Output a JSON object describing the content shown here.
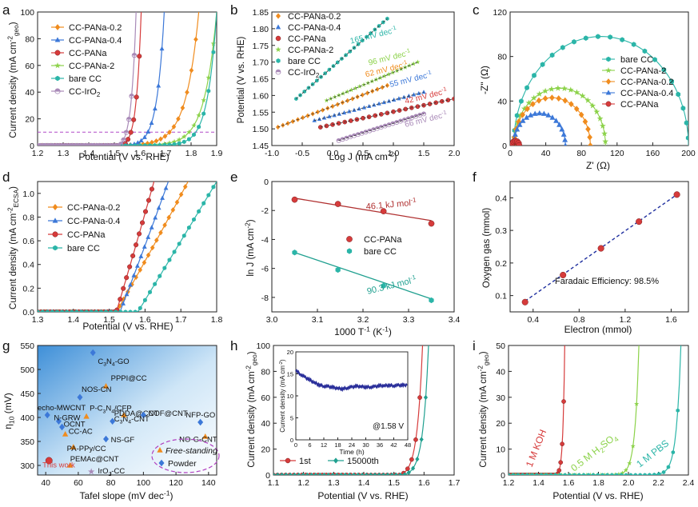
{
  "figure": {
    "description_free": true
  },
  "colors": {
    "pana02": "#F08C1E",
    "pana04": "#3C78D8",
    "pana": "#D63B3B",
    "pana2": "#8CD24A",
    "bare": "#2BB5A8",
    "iro2": "#A98AB8",
    "grid_dashed": "#B04AC8",
    "fit_red": "#B03030",
    "fit_teal": "#20A090",
    "fit_blue": "#1F2F9F",
    "eis_bare": "#2BB5A8"
  },
  "chart_data": [
    {
      "id": "a",
      "panel_label": "a",
      "type": "line",
      "xlabel": "Potential (V vs. RHE)",
      "ylabel_main": "Current density (mA cm",
      "ylabel_sup": "-2",
      "ylabel_sub": "geo",
      "ylabel_close": ")",
      "xlim": [
        1.2,
        1.9
      ],
      "ylim": [
        0,
        100
      ],
      "xticks": [
        "1.2",
        "1.3",
        "1.4",
        "1.5",
        "1.6",
        "1.7",
        "1.8",
        "1.9"
      ],
      "yticks": [
        "0",
        "20",
        "40",
        "60",
        "80",
        "100"
      ],
      "reference_line_y": 10,
      "series": [
        {
          "name": "CC-PANa-0.2",
          "color_key": "pana02",
          "marker": "diamond",
          "onset": 1.52,
          "end": 1.83,
          "k": 6.2
        },
        {
          "name": "CC-PANa-0.4",
          "color_key": "pana04",
          "marker": "triangle",
          "onset": 1.54,
          "end": 1.695,
          "k": 5.5
        },
        {
          "name": "CC-PANa",
          "color_key": "pana",
          "marker": "circle",
          "onset": 1.53,
          "end": 1.605,
          "k": 4.0
        },
        {
          "name": "CC-PANa-2",
          "color_key": "pana2",
          "marker": "star",
          "onset": 1.57,
          "end": 1.9,
          "k": 7.0
        },
        {
          "name": "bare CC",
          "color_key": "bare",
          "marker": "hexagon",
          "onset": 1.58,
          "end": 1.9,
          "k": 9.0
        },
        {
          "name": "CC-IrO",
          "sub": "2",
          "color_key": "iro2",
          "marker": "halfcircle",
          "onset": 1.52,
          "end": 1.585,
          "k": 3.5
        }
      ]
    },
    {
      "id": "b",
      "panel_label": "b",
      "type": "scatter",
      "xlabel": "Log J (mA cm",
      "xlabel_sup": "-2",
      "xlabel_close": ")",
      "ylabel": "Potential (V vs. RHE)",
      "xlim": [
        -1.0,
        2.0
      ],
      "ylim": [
        1.45,
        1.85
      ],
      "xticks": [
        "-1.0",
        "-0.5",
        "0.0",
        "0.5",
        "1.0",
        "1.5",
        "2.0"
      ],
      "yticks": [
        "1.45",
        "1.50",
        "1.55",
        "1.60",
        "1.65",
        "1.70",
        "1.75",
        "1.80",
        "1.85"
      ],
      "series": [
        {
          "name": "CC-PANa-0.2",
          "color_key": "pana02",
          "marker": "diamond",
          "x": [
            -0.9,
            0.9
          ],
          "y": [
            1.505,
            1.63
          ],
          "slope_label": "62 mV dec",
          "slope_sup": "-1",
          "label_pos": [
            0.55,
            1.655
          ]
        },
        {
          "name": "CC-PANa-0.4",
          "color_key": "pana04",
          "marker": "triangle",
          "x": [
            -0.3,
            1.5
          ],
          "y": [
            1.525,
            1.61
          ],
          "slope_label": "55 mV dec",
          "slope_sup": "-1",
          "label_pos": [
            0.95,
            1.625
          ]
        },
        {
          "name": "CC-PANa",
          "color_key": "pana",
          "marker": "circle",
          "x": [
            -0.2,
            2.0
          ],
          "y": [
            1.505,
            1.59
          ],
          "slope_label": "42 mV dec",
          "slope_sup": "-1",
          "label_pos": [
            1.2,
            1.575
          ]
        },
        {
          "name": "CC-PANa-2",
          "color_key": "pana2",
          "marker": "star",
          "x": [
            -0.1,
            1.4
          ],
          "y": [
            1.585,
            1.7
          ],
          "slope_label": "96 mV dec",
          "slope_sup": "-1",
          "label_pos": [
            0.6,
            1.69
          ]
        },
        {
          "name": "bare CC",
          "color_key": "bare",
          "marker": "hexagon",
          "x": [
            -0.6,
            0.9
          ],
          "y": [
            1.59,
            1.83
          ],
          "slope_label": "165 mV dec",
          "slope_sup": "-1",
          "label_pos": [
            0.3,
            1.755
          ]
        },
        {
          "name": "CC-IrO",
          "sub": "2",
          "color_key": "iro2",
          "marker": "halfcircle",
          "x": [
            0.1,
            1.5
          ],
          "y": [
            1.465,
            1.545
          ],
          "slope_label": "66 mV dec",
          "slope_sup": "-1",
          "label_pos": [
            1.2,
            1.505
          ]
        }
      ]
    },
    {
      "id": "c",
      "panel_label": "c",
      "type": "scatter",
      "xlabel": "Z' (Ω)",
      "ylabel": "-Z\" (Ω)",
      "xlim": [
        0,
        200
      ],
      "ylim": [
        0,
        120
      ],
      "xticks": [
        "0",
        "40",
        "80",
        "120",
        "160",
        "200"
      ],
      "yticks": [
        "0",
        "40",
        "80",
        "120"
      ],
      "series": [
        {
          "name": "bare CC",
          "color_key": "bare",
          "marker": "hexagon",
          "x0": 4,
          "x1": 200
        },
        {
          "name": "CC-PANa-2",
          "color_key": "pana2",
          "marker": "star",
          "x0": 4,
          "x1": 107
        },
        {
          "name": "CC-PANa-0.2",
          "color_key": "pana02",
          "marker": "diamond",
          "x0": 4,
          "x1": 90
        },
        {
          "name": "CC-PANa-0.4",
          "color_key": "pana04",
          "marker": "triangle",
          "x0": 4,
          "x1": 62
        },
        {
          "name": "CC-PANa",
          "color_key": "pana",
          "marker": "circle",
          "x0": 2,
          "x1": 10
        }
      ]
    },
    {
      "id": "d",
      "panel_label": "d",
      "type": "line",
      "xlabel": "Potential (V vs. RHE)",
      "ylabel_main": "Current density (mA cm",
      "ylabel_sup": "-2",
      "ylabel_sub": "ECSA",
      "ylabel_close": ")",
      "xlim": [
        1.3,
        1.8
      ],
      "ylim": [
        0,
        1.1
      ],
      "xticks": [
        "1.3",
        "1.4",
        "1.5",
        "1.6",
        "1.7",
        "1.8"
      ],
      "yticks": [
        "0.0",
        "0.2",
        "0.4",
        "0.6",
        "0.8",
        "1.0"
      ],
      "series": [
        {
          "name": "CC-PANa-0.2",
          "color_key": "pana02",
          "marker": "diamond",
          "onset": 1.52,
          "end": 1.72,
          "k": 0.09
        },
        {
          "name": "CC-PANa-0.4",
          "color_key": "pana04",
          "marker": "triangle",
          "onset": 1.53,
          "end": 1.665,
          "k": 0.075
        },
        {
          "name": "CC-PANa",
          "color_key": "pana",
          "marker": "circle",
          "onset": 1.52,
          "end": 1.625,
          "k": 0.06
        },
        {
          "name": "bare CC",
          "color_key": "bare",
          "marker": "hexagon",
          "onset": 1.58,
          "end": 1.8,
          "k": 0.0205
        }
      ]
    },
    {
      "id": "e",
      "panel_label": "e",
      "type": "scatter",
      "xlabel": "1000 T",
      "xlabel_sup": "-1",
      "xlabel_close": " (K",
      "xlabel_sup2": "-1",
      "xlabel_close2": ")",
      "ylabel": "ln J (mA cm",
      "ylabel_sup": "-2",
      "ylabel_close": ")",
      "xlim": [
        3.0,
        3.4
      ],
      "ylim": [
        -9,
        0
      ],
      "xticks": [
        "3.0",
        "3.1",
        "3.2",
        "3.3",
        "3.4"
      ],
      "yticks": [
        "-8",
        "-6",
        "-4",
        "-2",
        "0"
      ],
      "series": [
        {
          "name": "CC-PANa",
          "color_key": "pana",
          "marker": "circle",
          "x": [
            3.05,
            3.145,
            3.245,
            3.35
          ],
          "y": [
            -1.25,
            -1.55,
            -2.05,
            -2.9
          ],
          "fit": [
            [
              3.05,
              -1.15
            ],
            [
              3.35,
              -2.7
            ]
          ],
          "fit_color": "fit_red",
          "ea_label": "46.1 kJ mol",
          "ea_sup": "-1"
        },
        {
          "name": "bare CC",
          "color_key": "bare",
          "marker": "hexagon",
          "x": [
            3.05,
            3.145,
            3.245,
            3.35
          ],
          "y": [
            -4.9,
            -6.1,
            -7.2,
            -8.2
          ],
          "fit": [
            [
              3.05,
              -4.9
            ],
            [
              3.35,
              -8.1
            ]
          ],
          "fit_color": "fit_teal",
          "ea_label": "90.3 kJ mol",
          "ea_sup": "-1"
        }
      ]
    },
    {
      "id": "f",
      "panel_label": "f",
      "type": "scatter",
      "xlabel": "Electron (mmol)",
      "ylabel": "Oxygen gas (mmol)",
      "xlim": [
        0.2,
        1.75
      ],
      "ylim": [
        0.05,
        0.45
      ],
      "xticks": [
        "0.4",
        "0.8",
        "1.2",
        "1.6"
      ],
      "yticks": [
        "0.1",
        "0.2",
        "0.3",
        "0.4"
      ],
      "x": [
        0.33,
        0.66,
        0.99,
        1.32,
        1.65
      ],
      "y": [
        0.08,
        0.163,
        0.245,
        0.327,
        0.41
      ],
      "fit": [
        [
          0.33,
          0.083
        ],
        [
          1.65,
          0.41
        ]
      ],
      "annotation": "Faradaic Efficiency: 98.5%"
    },
    {
      "id": "g",
      "panel_label": "g",
      "type": "scatter",
      "xlabel": "Tafel slope (mV dec",
      "xlabel_sup": "-1",
      "xlabel_close": ")",
      "ylabel": "η",
      "ylabel_sub": "10",
      "ylabel_close": " (mV)",
      "xlim": [
        35,
        145
      ],
      "ylim": [
        280,
        550
      ],
      "xticks": [
        "40",
        "60",
        "80",
        "100",
        "120",
        "140"
      ],
      "yticks": [
        "300",
        "350",
        "400",
        "450",
        "500",
        "550"
      ],
      "points": [
        {
          "label": "C",
          "sub": "3",
          "label_rest": "N",
          "sub2": "4",
          "label_rest2": "-GO",
          "x": 69,
          "y": 535,
          "marker": "diamond",
          "color_key": "pana04",
          "lx": 72,
          "ly": 512
        },
        {
          "label": "PPPI@CC",
          "x": 77,
          "y": 465,
          "marker": "triangle",
          "color_key": "pana02",
          "lx": 80,
          "ly": 477
        },
        {
          "label": "NOS-CN",
          "x": 61,
          "y": 442,
          "marker": "diamond",
          "color_key": "pana04",
          "lx": 62,
          "ly": 453
        },
        {
          "label": "echo-MWCNT",
          "x": 41,
          "y": 405,
          "marker": "diamond",
          "color_key": "pana04",
          "lx": 35,
          "ly": 415
        },
        {
          "label": "P-C",
          "sub": "3",
          "label_rest": "N",
          "sub2": "4",
          "label_rest2": "/CFP",
          "x": 65,
          "y": 402,
          "marker": "triangle",
          "color_key": "pana02",
          "lx": 67,
          "ly": 414
        },
        {
          "label": "N-GRW",
          "x": 48,
          "y": 392,
          "marker": "diamond",
          "color_key": "pana04",
          "lx": 45,
          "ly": 394
        },
        {
          "label": "OCNT",
          "x": 50,
          "y": 380,
          "marker": "diamond",
          "color_key": "pana04",
          "lx": 51,
          "ly": 381
        },
        {
          "label": "PDDA@CNT",
          "x": 88,
          "y": 405,
          "marker": "triangle",
          "color_key": "pana02",
          "lx": 82,
          "ly": 403
        },
        {
          "label": "COF@CNT",
          "x": 100,
          "y": 405,
          "marker": "diamond",
          "color_key": "pana04",
          "lx": 103,
          "ly": 403
        },
        {
          "label": "C",
          "sub": "3",
          "label_rest": "N",
          "sub2": "4",
          "label_rest2": "-CNT",
          "x": 81,
          "y": 392,
          "marker": "diamond",
          "color_key": "pana04",
          "lx": 82,
          "ly": 392
        },
        {
          "label": "NFP-GO",
          "x": 135,
          "y": 390,
          "marker": "diamond",
          "color_key": "pana04",
          "lx": 126,
          "ly": 400
        },
        {
          "label": "CC-AC",
          "x": 52,
          "y": 365,
          "marker": "triangle",
          "color_key": "pana02",
          "lx": 54,
          "ly": 366
        },
        {
          "label": "NS-GF",
          "x": 77,
          "y": 355,
          "marker": "diamond",
          "color_key": "pana04",
          "lx": 80,
          "ly": 348
        },
        {
          "label": "NO-G-CNT",
          "x": 138,
          "y": 360,
          "marker": "triangle",
          "color_key": "pana02",
          "lx": 122,
          "ly": 349
        },
        {
          "label": "PA-PPy/CC",
          "x": 57,
          "y": 338,
          "marker": "triangle",
          "color_key": "pana02",
          "lx": 53,
          "ly": 330
        },
        {
          "label": "PEMAc@CNT",
          "x": 55,
          "y": 300,
          "marker": "triangle",
          "color_key": "pana02",
          "lx": 55,
          "ly": 308
        },
        {
          "label": "IrO",
          "sub": "2",
          "label_rest": "-CC",
          "x": 68,
          "y": 287,
          "marker": "star",
          "color_key": "iro2",
          "lx": 72,
          "ly": 283
        },
        {
          "label": "This work",
          "x": 42,
          "y": 310,
          "marker": "circle",
          "color_key": "pana",
          "lx": 38,
          "ly": 296,
          "label_color_key": "pana"
        }
      ],
      "legend": {
        "free_standing": "Free-standing",
        "powder": "Powder"
      }
    },
    {
      "id": "h",
      "panel_label": "h",
      "type": "line",
      "xlabel": "Potential (V vs. RHE)",
      "ylabel_main": "Current density (mA cm",
      "ylabel_sup": "-2",
      "ylabel_sub": "geo",
      "ylabel_close": ")",
      "xlim": [
        1.1,
        1.7
      ],
      "ylim": [
        0,
        100
      ],
      "xticks": [
        "1.1",
        "1.2",
        "1.3",
        "1.4",
        "1.5",
        "1.6",
        "1.7"
      ],
      "yticks": [
        "0",
        "20",
        "40",
        "60",
        "80",
        "100"
      ],
      "series": [
        {
          "name": "1st",
          "color_key": "pana",
          "marker": "circle",
          "onset": 1.52,
          "end": 1.595,
          "k": 4.2
        },
        {
          "name": "15000th",
          "color_key": "fit_teal",
          "marker": "diamond",
          "onset": 1.53,
          "end": 1.615,
          "k": 4.6
        }
      ],
      "inset": {
        "xlabel": "Time (h)",
        "ylabel": "Current density (mA cm",
        "ylabel_sup": "-2",
        "ylabel_close": ")",
        "xlim": [
          0,
          48
        ],
        "ylim": [
          0,
          20
        ],
        "xticks": [
          "0",
          "6",
          "12",
          "18",
          "24",
          "30",
          "36",
          "42",
          "48"
        ],
        "yticks": [
          "0",
          "5",
          "10",
          "15",
          "20"
        ],
        "annotation": "@1.58 V",
        "t": [
          0,
          2,
          4,
          6,
          8,
          10,
          12,
          14,
          16,
          18,
          20,
          22,
          24,
          26,
          28,
          30,
          32,
          34,
          36,
          38,
          40,
          42,
          44,
          46,
          48
        ],
        "j": [
          15.8,
          14.9,
          14.2,
          13.6,
          13.0,
          12.5,
          12.2,
          12.1,
          11.9,
          11.7,
          11.6,
          11.8,
          12.0,
          12.2,
          12.1,
          12.0,
          12.0,
          12.1,
          12.3,
          12.3,
          12.4,
          12.3,
          12.4,
          12.4,
          12.5
        ]
      }
    },
    {
      "id": "i",
      "panel_label": "i",
      "type": "line",
      "xlabel": "Potential (V vs. RHE)",
      "ylabel_main": "Current density (mA cm",
      "ylabel_sup": "-2",
      "ylabel_sub": "geo",
      "ylabel_close": ")",
      "xlim": [
        1.2,
        2.4
      ],
      "ylim": [
        0,
        50
      ],
      "xticks": [
        "1.2",
        "1.4",
        "1.6",
        "1.8",
        "2.0",
        "2.2",
        "2.4"
      ],
      "yticks": [
        "0",
        "10",
        "20",
        "30",
        "40",
        "50"
      ],
      "series": [
        {
          "name": "1 M KOH",
          "label_main": "1 M KOH",
          "color_key": "pana",
          "marker": "circle",
          "onset": 1.52,
          "end": 1.575,
          "k": 4.5
        },
        {
          "name": "0.5 M H2SO4",
          "label_main": "0.5 M H",
          "sub": "2",
          "label_rest": "SO",
          "sub2": "4",
          "color_key": "pana2",
          "marker": "star",
          "onset": 1.78,
          "end": 2.07,
          "k": 11
        },
        {
          "name": "1 M PBS",
          "label_main": "1 M PBS",
          "color_key": "bare",
          "marker": "hexagon",
          "onset": 1.9,
          "end": 2.35,
          "k": 15
        }
      ]
    }
  ]
}
